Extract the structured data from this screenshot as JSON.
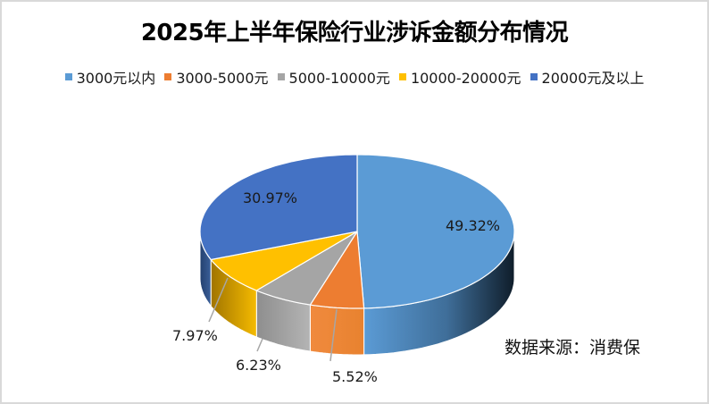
{
  "chart_data": {
    "type": "pie",
    "title": "2025年上半年保险行业涉诉金额分布情况",
    "categories": [
      "3000元以内",
      "3000-5000元",
      "5000-10000元",
      "10000-20000元",
      "20000元及以上"
    ],
    "values": [
      49.32,
      5.52,
      6.23,
      7.97,
      30.97
    ],
    "value_labels": [
      "49.32%",
      "5.52%",
      "6.23%",
      "7.97%",
      "30.97%"
    ],
    "colors": [
      "#5B9BD5",
      "#ED7D31",
      "#A5A5A5",
      "#FFC000",
      "#4472C4"
    ],
    "style": "3D pie",
    "legend_position": "top",
    "annotations": [
      "数据来源：消费保"
    ]
  },
  "title": "2025年上半年保险行业涉诉金额分布情况",
  "legend": [
    {
      "label": "3000元以内",
      "color": "#5B9BD5"
    },
    {
      "label": "3000-5000元",
      "color": "#ED7D31"
    },
    {
      "label": "5000-10000元",
      "color": "#A5A5A5"
    },
    {
      "label": "10000-20000元",
      "color": "#FFC000"
    },
    {
      "label": "20000元及以上",
      "color": "#4472C4"
    }
  ],
  "labels": {
    "l0": "49.32%",
    "l1": "5.52%",
    "l2": "6.23%",
    "l3": "7.97%",
    "l4": "30.97%"
  },
  "source": "数据来源：消费保"
}
